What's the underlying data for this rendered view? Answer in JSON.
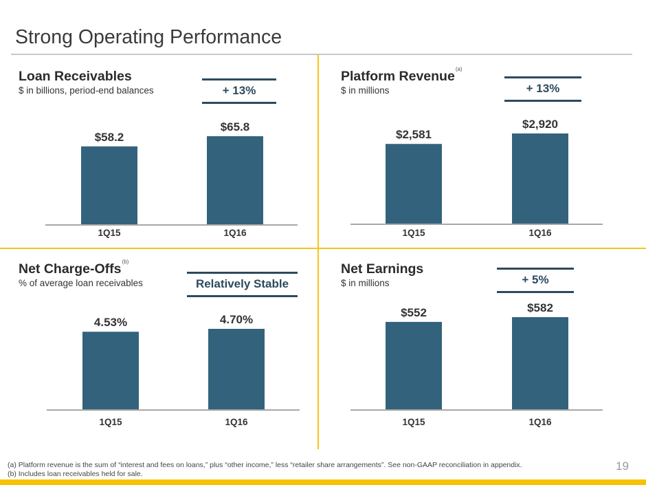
{
  "slide": {
    "title": "Strong Operating Performance",
    "page_number": "19",
    "colors": {
      "bar": "#33637c",
      "callout": "#2c4a5e",
      "accent_yellow": "#f5c518",
      "rule_gray": "#c8c8c8"
    }
  },
  "panels": [
    {
      "title": "Loan Receivables",
      "footnote_ref": "",
      "subtitle": "$ in billions, period-end balances",
      "callout": "+ 13%"
    },
    {
      "title": "Platform Revenue",
      "footnote_ref": "(a)",
      "subtitle": "$ in millions",
      "callout": "+ 13%"
    },
    {
      "title": "Net Charge-Offs",
      "footnote_ref": "(b)",
      "subtitle": "% of average loan receivables",
      "callout": "Relatively Stable"
    },
    {
      "title": "Net Earnings",
      "footnote_ref": "",
      "subtitle": "$ in millions",
      "callout": "+ 5%"
    }
  ],
  "chart_data": [
    {
      "type": "bar",
      "title": "Loan Receivables",
      "ylabel": "$ in billions, period-end balances",
      "categories": [
        "1Q15",
        "1Q16"
      ],
      "values": [
        58.2,
        65.8
      ],
      "value_labels": [
        "$58.2",
        "$65.8"
      ],
      "ylim": [
        0,
        65.8
      ],
      "grid": false
    },
    {
      "type": "bar",
      "title": "Platform Revenue",
      "ylabel": "$ in millions",
      "categories": [
        "1Q15",
        "1Q16"
      ],
      "values": [
        2581,
        2920
      ],
      "value_labels": [
        "$2,581",
        "$2,920"
      ],
      "ylim": [
        0,
        2920
      ],
      "grid": false
    },
    {
      "type": "bar",
      "title": "Net Charge-Offs",
      "ylabel": "% of average loan receivables",
      "categories": [
        "1Q15",
        "1Q16"
      ],
      "values": [
        4.53,
        4.7
      ],
      "value_labels": [
        "4.53%",
        "4.70%"
      ],
      "ylim": [
        0,
        4.7
      ],
      "grid": false
    },
    {
      "type": "bar",
      "title": "Net Earnings",
      "ylabel": "$ in millions",
      "categories": [
        "1Q15",
        "1Q16"
      ],
      "values": [
        552,
        582
      ],
      "value_labels": [
        "$552",
        "$582"
      ],
      "ylim": [
        0,
        582
      ],
      "grid": false
    }
  ],
  "footnotes": [
    "(a)  Platform revenue is the sum of “interest and fees on loans,” plus “other income,” less “retailer share arrangements”.  See non-GAAP reconciliation in appendix.",
    "(b)  Includes loan receivables held for sale."
  ]
}
